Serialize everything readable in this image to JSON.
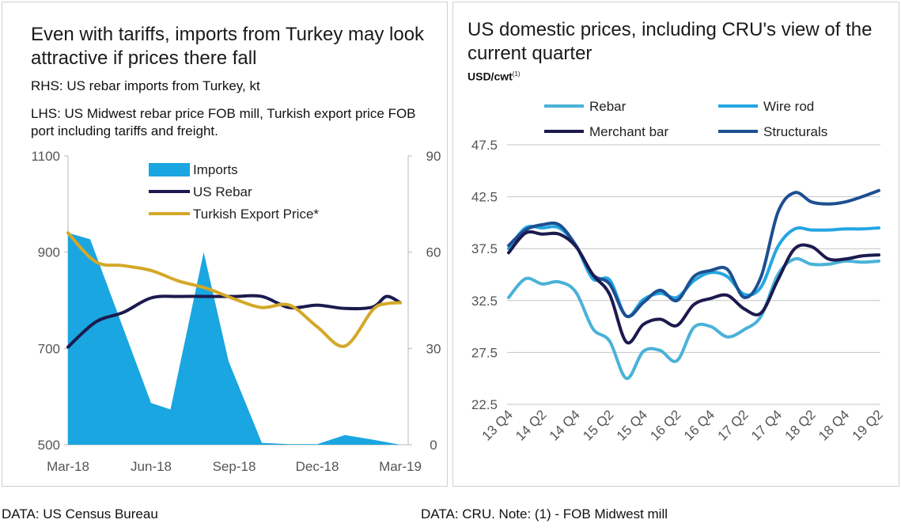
{
  "left_panel": {
    "title": "Even with tariffs, imports from Turkey may look attractive if prices there fall",
    "rhs_label": "RHS: US rebar imports from Turkey, kt",
    "lhs_label": "LHS: US Midwest rebar price FOB mill, Turkish export price FOB port including tariffs and freight."
  },
  "right_panel": {
    "title": "US domestic prices, including CRU's view of the current quarter",
    "unit": "USD/cwt",
    "unit_note": "(1)"
  },
  "footnotes": {
    "left": "DATA: US Census Bureau",
    "right": "DATA: CRU.  Note: (1) - FOB Midwest mill"
  },
  "chart_data": [
    {
      "id": "turkey-imports",
      "type": "area",
      "title": "Even with tariffs, imports from Turkey may look attractive if prices there fall",
      "x_labels": [
        "Mar-18",
        "Jun-18",
        "Sep-18",
        "Dec-18",
        "Mar-19"
      ],
      "x_label_index": [
        0,
        3,
        6,
        9,
        12
      ],
      "y_left": {
        "ticks": [
          "500",
          "700",
          "900",
          "1100"
        ],
        "lim": [
          500,
          1100
        ]
      },
      "y_right": {
        "ticks": [
          "0",
          "30",
          "60",
          "90"
        ],
        "lim": [
          0,
          90
        ]
      },
      "series": [
        {
          "name": "Imports",
          "kind": "area",
          "axis": "right",
          "color": "#1aa6e0",
          "x": [
            0,
            0.8,
            3.0,
            3.7,
            4.9,
            5.8,
            7.0,
            8.0,
            9.0,
            10.0,
            11.0,
            12.0
          ],
          "values": [
            66,
            64,
            13,
            11,
            60,
            26,
            0.6,
            0.2,
            0.2,
            3,
            1.6,
            0
          ]
        },
        {
          "name": "US Rebar",
          "kind": "line",
          "axis": "left",
          "color": "#1c1a4e",
          "x": [
            0,
            1.0,
            2.0,
            3.0,
            4.0,
            5.0,
            6.0,
            7.0,
            8.0,
            9.0,
            10.0,
            11.0,
            11.5,
            12.0
          ],
          "values": [
            703,
            755,
            775,
            805,
            808,
            808,
            808,
            808,
            785,
            790,
            783,
            786,
            808,
            795
          ]
        },
        {
          "name": "Turkish Export Price*",
          "kind": "line",
          "axis": "left",
          "color": "#d4a828",
          "x": [
            0,
            1.0,
            2.0,
            3.0,
            4.0,
            5.0,
            6.0,
            7.0,
            8.0,
            9.0,
            10.0,
            11.0,
            11.5,
            12.0
          ],
          "values": [
            940,
            880,
            872,
            862,
            840,
            825,
            803,
            785,
            790,
            745,
            705,
            780,
            793,
            795
          ]
        }
      ],
      "legend": [
        "Imports",
        "US  Rebar",
        "Turkish Export Price*"
      ]
    },
    {
      "id": "us-domestic-prices",
      "type": "line",
      "title": "US domestic prices, including CRU's view of the current quarter",
      "ylabel": "USD/cwt",
      "categories": [
        "13 Q4",
        "14 Q2",
        "14 Q4",
        "15 Q2",
        "15 Q4",
        "16 Q2",
        "16 Q4",
        "17 Q2",
        "17 Q4",
        "18 Q2",
        "18 Q4",
        "19 Q2"
      ],
      "y_ticks": [
        "22.5",
        "27.5",
        "32.5",
        "37.5",
        "42.5",
        "47.5"
      ],
      "ylim": [
        22.5,
        47.5
      ],
      "grid": true,
      "series": [
        {
          "name": "Rebar",
          "color": "#4ab2d8",
          "x": [
            0,
            1,
            2,
            3,
            4,
            5,
            6,
            7,
            8,
            9,
            10,
            11,
            12,
            13,
            14,
            15,
            16,
            17,
            18,
            19,
            20,
            21,
            22
          ],
          "values": [
            32.8,
            34.6,
            34.1,
            34.3,
            33.3,
            29.8,
            28.6,
            25.0,
            27.6,
            27.7,
            26.7,
            29.9,
            30.0,
            29.0,
            29.7,
            31.0,
            35.0,
            36.5,
            36.0,
            36.0,
            36.3,
            36.2,
            36.3
          ]
        },
        {
          "name": "Wire rod",
          "color": "#24a6e2",
          "x": [
            0,
            1,
            2,
            3,
            4,
            5,
            6,
            7,
            8,
            9,
            10,
            11,
            12,
            13,
            14,
            15,
            16,
            17,
            18,
            19,
            20,
            21,
            22
          ],
          "values": [
            37.5,
            39.5,
            39.5,
            39.5,
            37.8,
            34.6,
            34.5,
            31.0,
            32.6,
            33.2,
            32.8,
            34.4,
            35.2,
            34.8,
            33.1,
            33.8,
            37.7,
            39.4,
            39.3,
            39.3,
            39.4,
            39.4,
            39.5
          ]
        },
        {
          "name": "Merchant bar",
          "color": "#1c1a4e",
          "x": [
            0,
            1,
            2,
            3,
            4,
            5,
            6,
            7,
            8,
            9,
            10,
            11,
            12,
            13,
            14,
            15,
            16,
            17,
            18,
            19,
            20,
            21,
            22
          ],
          "values": [
            37.1,
            39.0,
            38.9,
            38.9,
            37.7,
            35.0,
            33.1,
            28.5,
            30.2,
            30.7,
            30.1,
            32.1,
            32.7,
            33.0,
            31.7,
            31.3,
            34.5,
            37.5,
            37.7,
            36.5,
            36.5,
            36.8,
            36.9
          ]
        },
        {
          "name": "Structurals",
          "color": "#1d4f92",
          "x": [
            0,
            1,
            2,
            3,
            4,
            5,
            6,
            7,
            8,
            9,
            10,
            11,
            12,
            13,
            14,
            15,
            16,
            17,
            18,
            19,
            20,
            21,
            22
          ],
          "values": [
            37.8,
            39.3,
            39.8,
            39.8,
            37.8,
            35.0,
            34.1,
            31.0,
            32.3,
            33.5,
            32.5,
            34.8,
            35.4,
            35.5,
            32.8,
            34.8,
            41.0,
            42.9,
            42.0,
            41.8,
            42.0,
            42.5,
            43.1
          ]
        }
      ],
      "legend": [
        "Rebar",
        "Wire rod",
        "Merchant bar",
        "Structurals"
      ]
    }
  ]
}
